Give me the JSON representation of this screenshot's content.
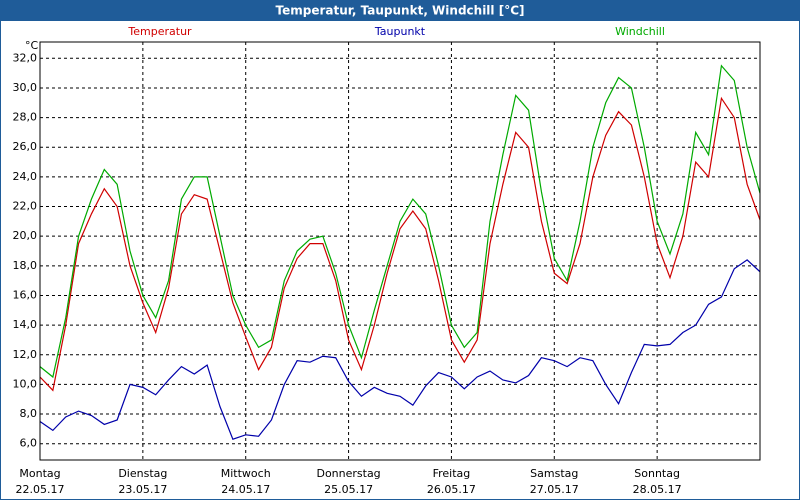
{
  "chart_data": {
    "type": "line",
    "title": "Temperatur, Taupunkt, Windchill [°C]",
    "y_unit": "°C",
    "x": [
      0,
      0.125,
      0.25,
      0.375,
      0.5,
      0.625,
      0.75,
      0.875,
      1,
      1.125,
      1.25,
      1.375,
      1.5,
      1.625,
      1.75,
      1.875,
      2,
      2.125,
      2.25,
      2.375,
      2.5,
      2.625,
      2.75,
      2.875,
      3,
      3.125,
      3.25,
      3.375,
      3.5,
      3.625,
      3.75,
      3.875,
      4,
      4.125,
      4.25,
      4.375,
      4.5,
      4.625,
      4.75,
      4.875,
      5,
      5.125,
      5.25,
      5.375,
      5.5,
      5.625,
      5.75,
      5.875,
      6,
      6.125,
      6.25,
      6.375,
      6.5,
      6.625,
      6.75,
      6.875,
      7
    ],
    "series": [
      {
        "name": "Temperatur",
        "color": "#d00000",
        "values": [
          10.5,
          9.6,
          14,
          19.5,
          21.5,
          23.2,
          22,
          18,
          15.5,
          13.5,
          16.5,
          21.5,
          22.8,
          22.5,
          19,
          15.5,
          13.2,
          11,
          12.5,
          16.5,
          18.5,
          19.5,
          19.5,
          17,
          13,
          11,
          14,
          17.5,
          20.5,
          21.7,
          20.5,
          17,
          13,
          11.5,
          13,
          19.5,
          23.5,
          27,
          26,
          21,
          17.5,
          16.8,
          19.5,
          24,
          26.8,
          28.4,
          27.5,
          24,
          19.5,
          17.2,
          20,
          25,
          24,
          29.3,
          28,
          23.5,
          21.1
        ]
      },
      {
        "name": "Taupunkt",
        "color": "#0000aa",
        "values": [
          7.5,
          6.9,
          7.8,
          8.2,
          7.9,
          7.3,
          7.6,
          10,
          9.8,
          9.3,
          10.3,
          11.2,
          10.7,
          11.3,
          8.5,
          6.3,
          6.6,
          6.5,
          7.6,
          10,
          11.6,
          11.5,
          11.9,
          11.8,
          10.2,
          9.2,
          9.8,
          9.4,
          9.2,
          8.6,
          9.9,
          10.8,
          10.5,
          9.7,
          10.5,
          10.9,
          10.3,
          10.1,
          10.6,
          11.8,
          11.6,
          11.2,
          11.8,
          11.6,
          10,
          8.7,
          10.8,
          12.7,
          12.6,
          12.7,
          13.5,
          14,
          15.4,
          15.9,
          17.8,
          18.4,
          17.6
        ]
      },
      {
        "name": "Windchill",
        "color": "#00aa00",
        "values": [
          11.2,
          10.5,
          14.5,
          20,
          22.5,
          24.5,
          23.5,
          19,
          16,
          14.5,
          17,
          22.5,
          24,
          24,
          20,
          16,
          14,
          12.5,
          13,
          17,
          19,
          19.8,
          20,
          17.5,
          14,
          11.8,
          15,
          18,
          21,
          22.5,
          21.5,
          18,
          14,
          12.5,
          13.5,
          21,
          25.5,
          29.5,
          28.5,
          23,
          18.5,
          17,
          21,
          26,
          29,
          30.7,
          30,
          26,
          21,
          18.8,
          21.5,
          27,
          25.5,
          31.5,
          30.5,
          26,
          22.9
        ]
      }
    ],
    "xlim": [
      0,
      7
    ],
    "xticks": [
      {
        "value": 0,
        "label": "Montag",
        "date": "22.05.17"
      },
      {
        "value": 1,
        "label": "Dienstag",
        "date": "23.05.17"
      },
      {
        "value": 2,
        "label": "Mittwoch",
        "date": "24.05.17"
      },
      {
        "value": 3,
        "label": "Donnerstag",
        "date": "25.05.17"
      },
      {
        "value": 4,
        "label": "Freitag",
        "date": "26.05.17"
      },
      {
        "value": 5,
        "label": "Samstag",
        "date": "27.05.17"
      },
      {
        "value": 6,
        "label": "Sonntag",
        "date": "28.05.17"
      }
    ],
    "ylim": [
      4.9,
      33.1
    ],
    "yticks": [
      {
        "value": 6,
        "label": "6,0"
      },
      {
        "value": 8,
        "label": "8,0"
      },
      {
        "value": 10,
        "label": "10,0"
      },
      {
        "value": 12,
        "label": "12,0"
      },
      {
        "value": 14,
        "label": "14,0"
      },
      {
        "value": 16,
        "label": "16,0"
      },
      {
        "value": 18,
        "label": "18,0"
      },
      {
        "value": 20,
        "label": "20,0"
      },
      {
        "value": 22,
        "label": "22,0"
      },
      {
        "value": 24,
        "label": "24,0"
      },
      {
        "value": 26,
        "label": "26,0"
      },
      {
        "value": 28,
        "label": "28,0"
      },
      {
        "value": 30,
        "label": "30,0"
      },
      {
        "value": 32,
        "label": "32,0"
      }
    ],
    "grid": true
  }
}
